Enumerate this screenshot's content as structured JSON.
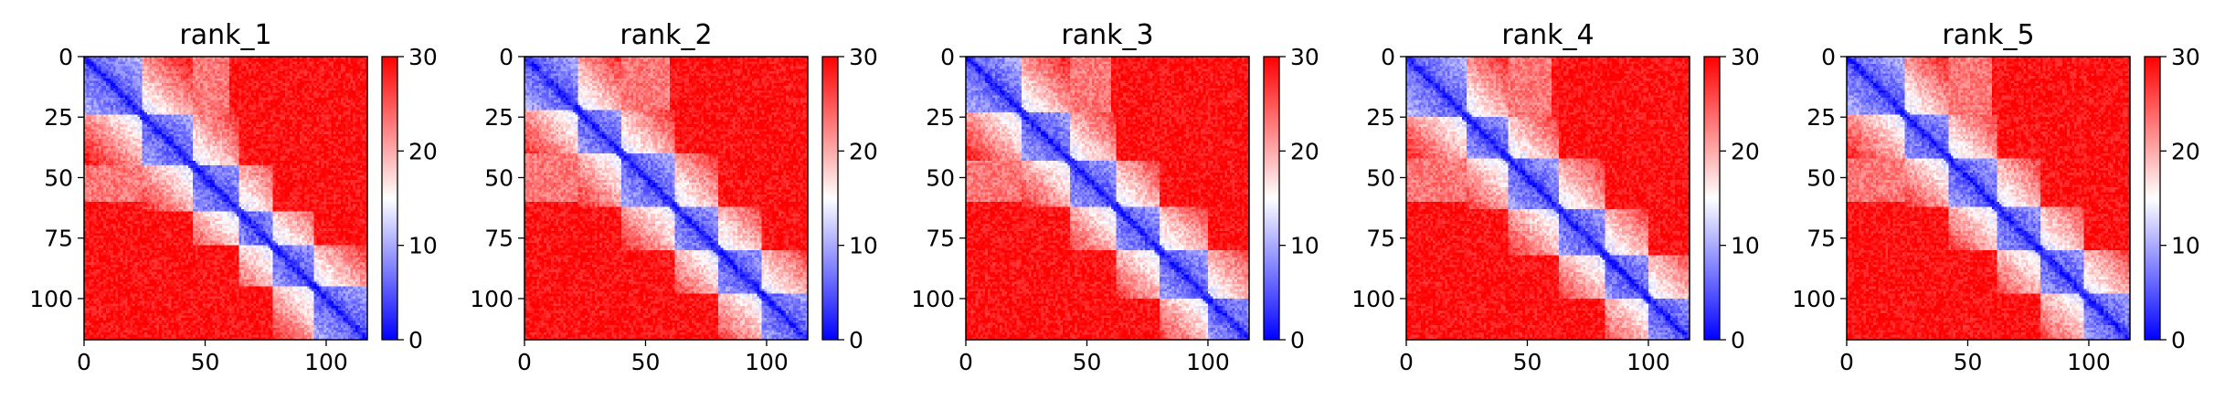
{
  "figure": {
    "panels": [
      "rank_1",
      "rank_2",
      "rank_3",
      "rank_4",
      "rank_5"
    ]
  },
  "chart_data": [
    {
      "type": "heatmap",
      "title": "rank_1",
      "xlabel": "",
      "ylabel": "",
      "matrix_size": 117,
      "xlim": [
        0,
        117
      ],
      "ylim": [
        117,
        0
      ],
      "xticks": [
        0,
        50,
        100
      ],
      "yticks": [
        0,
        25,
        50,
        75,
        100
      ],
      "colormap": "bwr",
      "vmin": 0,
      "vmax": 30,
      "colorbar_ticks": [
        0,
        10,
        20,
        30
      ],
      "colors": {
        "low": "#0000ff",
        "mid": "#ffffff",
        "high": "#ff0000"
      },
      "domain_blocks": [
        [
          0,
          24
        ],
        [
          24,
          45
        ],
        [
          45,
          64
        ],
        [
          64,
          78
        ],
        [
          78,
          95
        ],
        [
          95,
          117
        ]
      ]
    },
    {
      "type": "heatmap",
      "title": "rank_2",
      "xlabel": "",
      "ylabel": "",
      "matrix_size": 117,
      "xlim": [
        0,
        117
      ],
      "ylim": [
        117,
        0
      ],
      "xticks": [
        0,
        50,
        100
      ],
      "yticks": [
        0,
        25,
        50,
        75,
        100
      ],
      "colormap": "bwr",
      "vmin": 0,
      "vmax": 30,
      "colorbar_ticks": [
        0,
        10,
        20,
        30
      ],
      "colors": {
        "low": "#0000ff",
        "mid": "#ffffff",
        "high": "#ff0000"
      },
      "domain_blocks": [
        [
          0,
          22
        ],
        [
          22,
          40
        ],
        [
          40,
          62
        ],
        [
          62,
          80
        ],
        [
          80,
          98
        ],
        [
          98,
          117
        ]
      ]
    },
    {
      "type": "heatmap",
      "title": "rank_3",
      "xlabel": "",
      "ylabel": "",
      "matrix_size": 117,
      "xlim": [
        0,
        117
      ],
      "ylim": [
        117,
        0
      ],
      "xticks": [
        0,
        50,
        100
      ],
      "yticks": [
        0,
        25,
        50,
        75,
        100
      ],
      "colormap": "bwr",
      "vmin": 0,
      "vmax": 30,
      "colorbar_ticks": [
        0,
        10,
        20,
        30
      ],
      "colors": {
        "low": "#0000ff",
        "mid": "#ffffff",
        "high": "#ff0000"
      },
      "domain_blocks": [
        [
          0,
          23
        ],
        [
          23,
          43
        ],
        [
          43,
          62
        ],
        [
          62,
          80
        ],
        [
          80,
          100
        ],
        [
          100,
          117
        ]
      ]
    },
    {
      "type": "heatmap",
      "title": "rank_4",
      "xlabel": "",
      "ylabel": "",
      "matrix_size": 117,
      "xlim": [
        0,
        117
      ],
      "ylim": [
        117,
        0
      ],
      "xticks": [
        0,
        50,
        100
      ],
      "yticks": [
        0,
        25,
        50,
        75,
        100
      ],
      "colormap": "bwr",
      "vmin": 0,
      "vmax": 30,
      "colorbar_ticks": [
        0,
        10,
        20,
        30
      ],
      "colors": {
        "low": "#0000ff",
        "mid": "#ffffff",
        "high": "#ff0000"
      },
      "domain_blocks": [
        [
          0,
          25
        ],
        [
          25,
          42
        ],
        [
          42,
          63
        ],
        [
          63,
          82
        ],
        [
          82,
          100
        ],
        [
          100,
          117
        ]
      ]
    },
    {
      "type": "heatmap",
      "title": "rank_5",
      "xlabel": "",
      "ylabel": "",
      "matrix_size": 117,
      "xlim": [
        0,
        117
      ],
      "ylim": [
        117,
        0
      ],
      "xticks": [
        0,
        50,
        100
      ],
      "yticks": [
        0,
        25,
        50,
        75,
        100
      ],
      "colormap": "bwr",
      "vmin": 0,
      "vmax": 30,
      "colorbar_ticks": [
        0,
        10,
        20,
        30
      ],
      "colors": {
        "low": "#0000ff",
        "mid": "#ffffff",
        "high": "#ff0000"
      },
      "domain_blocks": [
        [
          0,
          24
        ],
        [
          24,
          42
        ],
        [
          42,
          62
        ],
        [
          62,
          80
        ],
        [
          80,
          98
        ],
        [
          98,
          117
        ]
      ]
    }
  ]
}
